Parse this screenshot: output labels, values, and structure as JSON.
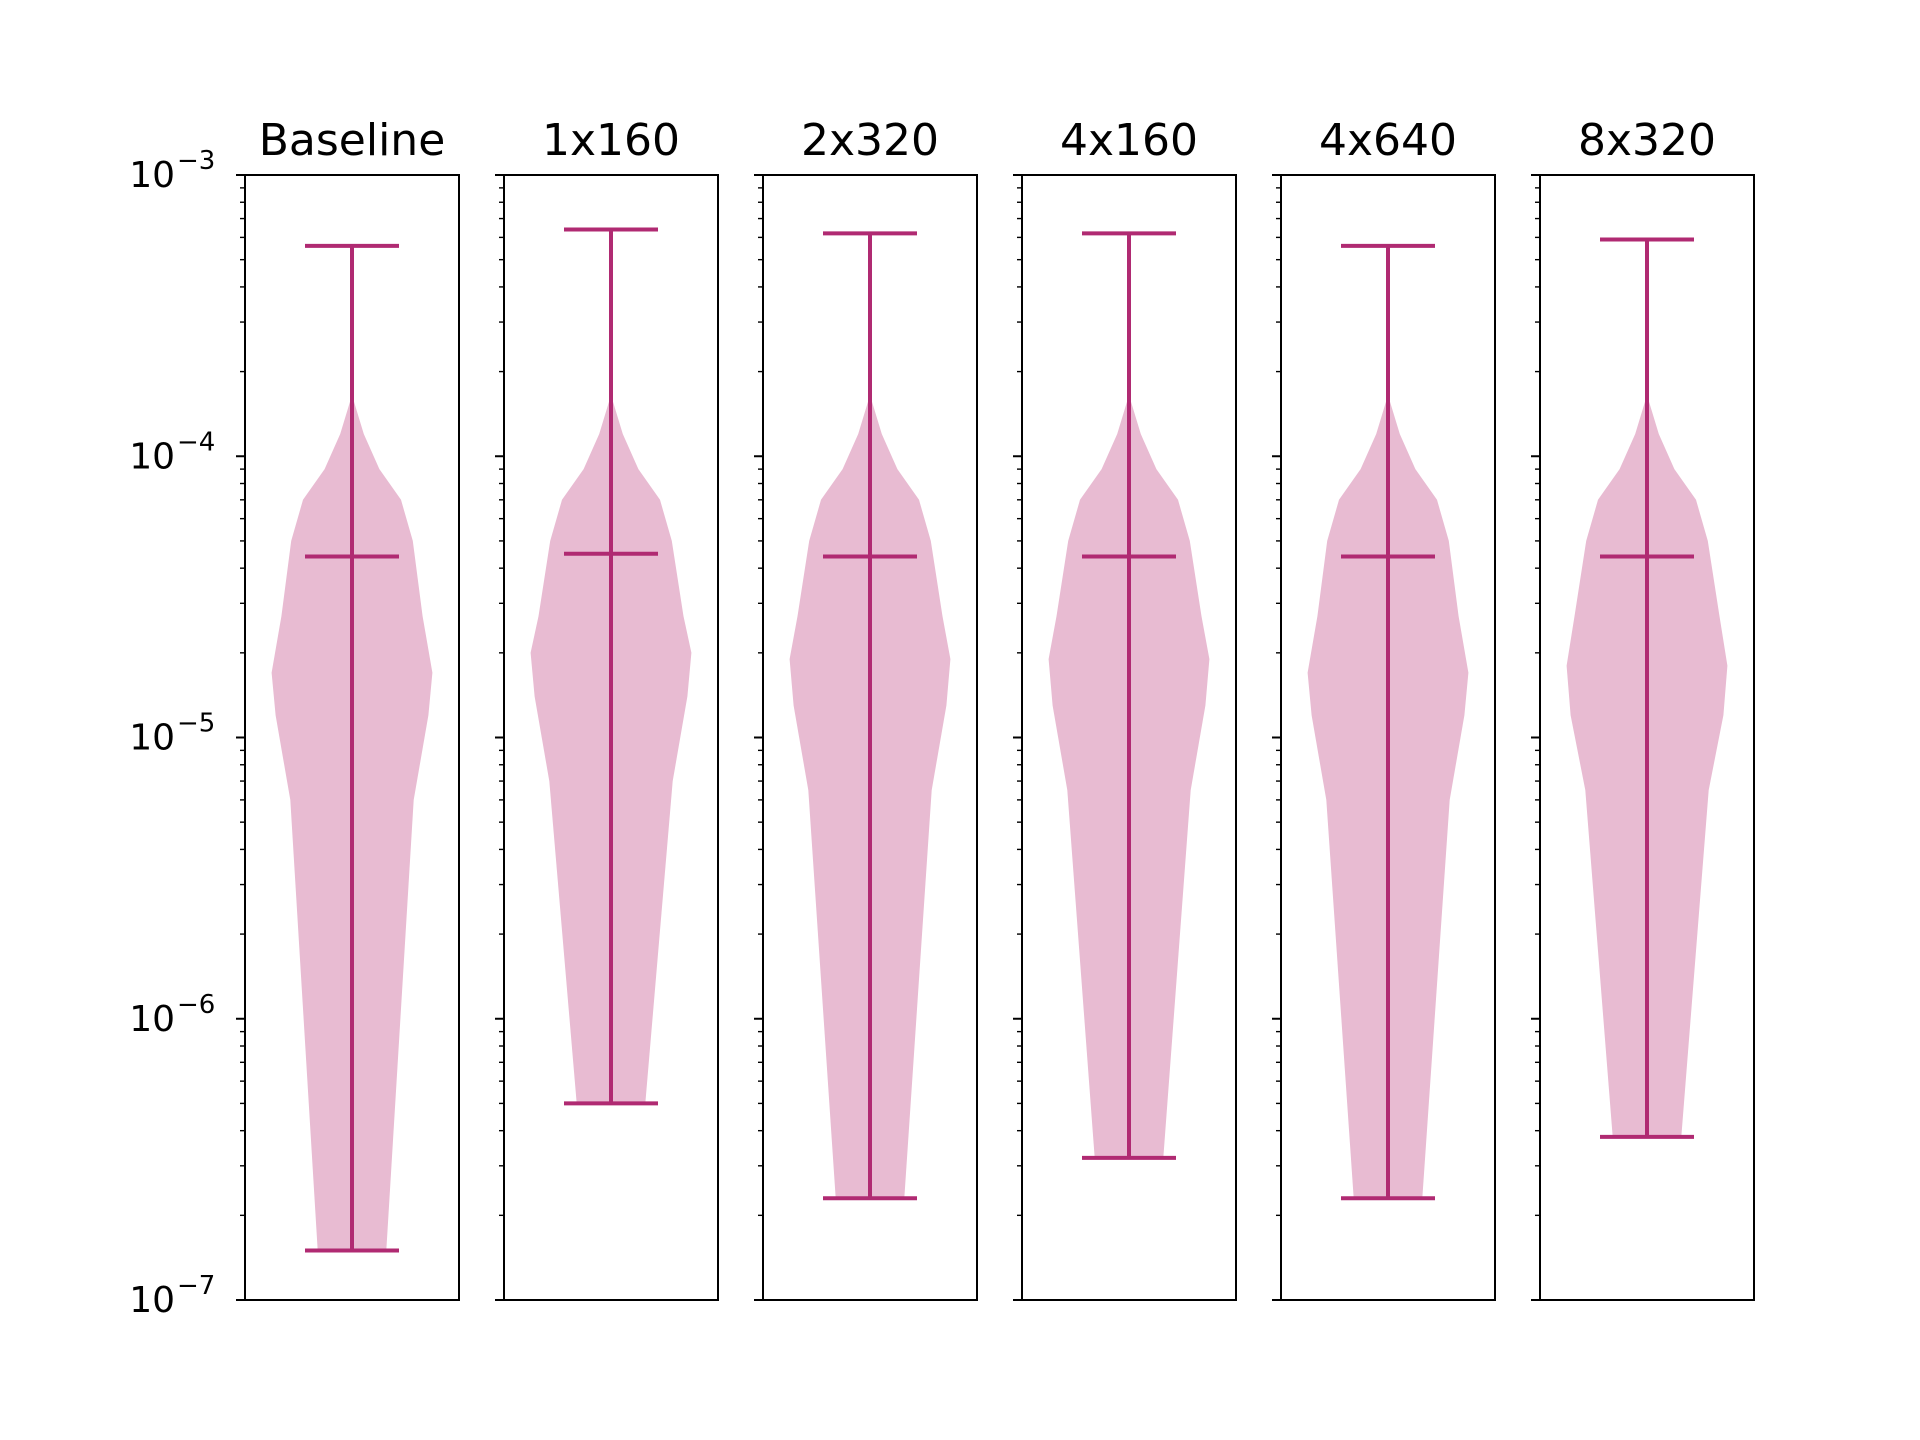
{
  "chart_data": {
    "type": "violin",
    "yscale": "log",
    "ylim": [
      1e-07,
      0.001
    ],
    "yticks": [
      {
        "value": 0.001,
        "base": "10",
        "exp": "−3"
      },
      {
        "value": 0.0001,
        "base": "10",
        "exp": "−4"
      },
      {
        "value": 1e-05,
        "base": "10",
        "exp": "−5"
      },
      {
        "value": 1e-06,
        "base": "10",
        "exp": "−6"
      },
      {
        "value": 1e-07,
        "base": "10",
        "exp": "−7"
      }
    ],
    "colors": {
      "body": "#e8bbd2",
      "lines": "#b02a72",
      "axes": "#000000"
    },
    "show_median": true,
    "show_extrema": true,
    "panels": [
      {
        "title": "Baseline",
        "min": 1.5e-07,
        "median": 4.4e-05,
        "max": 0.00056,
        "density": [
          [
            1.5e-07,
            0.35
          ],
          [
            6e-06,
            0.63
          ],
          [
            1.2e-05,
            0.78
          ],
          [
            1.7e-05,
            0.82
          ],
          [
            2.7e-05,
            0.72
          ],
          [
            5e-05,
            0.62
          ],
          [
            7e-05,
            0.5
          ],
          [
            9e-05,
            0.28
          ],
          [
            0.00012,
            0.12
          ],
          [
            0.000165,
            0.0
          ]
        ]
      },
      {
        "title": "1x160",
        "min": 5e-07,
        "median": 4.5e-05,
        "max": 0.00064,
        "density": [
          [
            5e-07,
            0.35
          ],
          [
            7e-06,
            0.63
          ],
          [
            1.4e-05,
            0.78
          ],
          [
            2e-05,
            0.82
          ],
          [
            2.7e-05,
            0.74
          ],
          [
            5e-05,
            0.62
          ],
          [
            7e-05,
            0.5
          ],
          [
            9e-05,
            0.28
          ],
          [
            0.00012,
            0.12
          ],
          [
            0.000165,
            0.0
          ]
        ]
      },
      {
        "title": "2x320",
        "min": 2.3e-07,
        "median": 4.4e-05,
        "max": 0.00062,
        "density": [
          [
            2.3e-07,
            0.35
          ],
          [
            6.5e-06,
            0.63
          ],
          [
            1.3e-05,
            0.78
          ],
          [
            1.9e-05,
            0.82
          ],
          [
            2.7e-05,
            0.74
          ],
          [
            5e-05,
            0.62
          ],
          [
            7e-05,
            0.5
          ],
          [
            9e-05,
            0.28
          ],
          [
            0.00012,
            0.12
          ],
          [
            0.000165,
            0.0
          ]
        ]
      },
      {
        "title": "4x160",
        "min": 3.2e-07,
        "median": 4.4e-05,
        "max": 0.00062,
        "density": [
          [
            3.2e-07,
            0.35
          ],
          [
            6.5e-06,
            0.63
          ],
          [
            1.3e-05,
            0.78
          ],
          [
            1.9e-05,
            0.82
          ],
          [
            2.7e-05,
            0.74
          ],
          [
            5e-05,
            0.62
          ],
          [
            7e-05,
            0.5
          ],
          [
            9e-05,
            0.28
          ],
          [
            0.00012,
            0.12
          ],
          [
            0.000165,
            0.0
          ]
        ]
      },
      {
        "title": "4x640",
        "min": 2.3e-07,
        "median": 4.4e-05,
        "max": 0.00056,
        "density": [
          [
            2.3e-07,
            0.35
          ],
          [
            6e-06,
            0.63
          ],
          [
            1.2e-05,
            0.78
          ],
          [
            1.7e-05,
            0.82
          ],
          [
            2.7e-05,
            0.72
          ],
          [
            5e-05,
            0.62
          ],
          [
            7e-05,
            0.5
          ],
          [
            9e-05,
            0.28
          ],
          [
            0.00012,
            0.12
          ],
          [
            0.000165,
            0.0
          ]
        ]
      },
      {
        "title": "8x320",
        "min": 3.8e-07,
        "median": 4.4e-05,
        "max": 0.00059,
        "density": [
          [
            3.8e-07,
            0.35
          ],
          [
            6.5e-06,
            0.63
          ],
          [
            1.2e-05,
            0.78
          ],
          [
            1.8e-05,
            0.82
          ],
          [
            2.7e-05,
            0.74
          ],
          [
            5e-05,
            0.62
          ],
          [
            7e-05,
            0.5
          ],
          [
            9e-05,
            0.28
          ],
          [
            0.00012,
            0.12
          ],
          [
            0.000165,
            0.0
          ]
        ]
      }
    ]
  }
}
